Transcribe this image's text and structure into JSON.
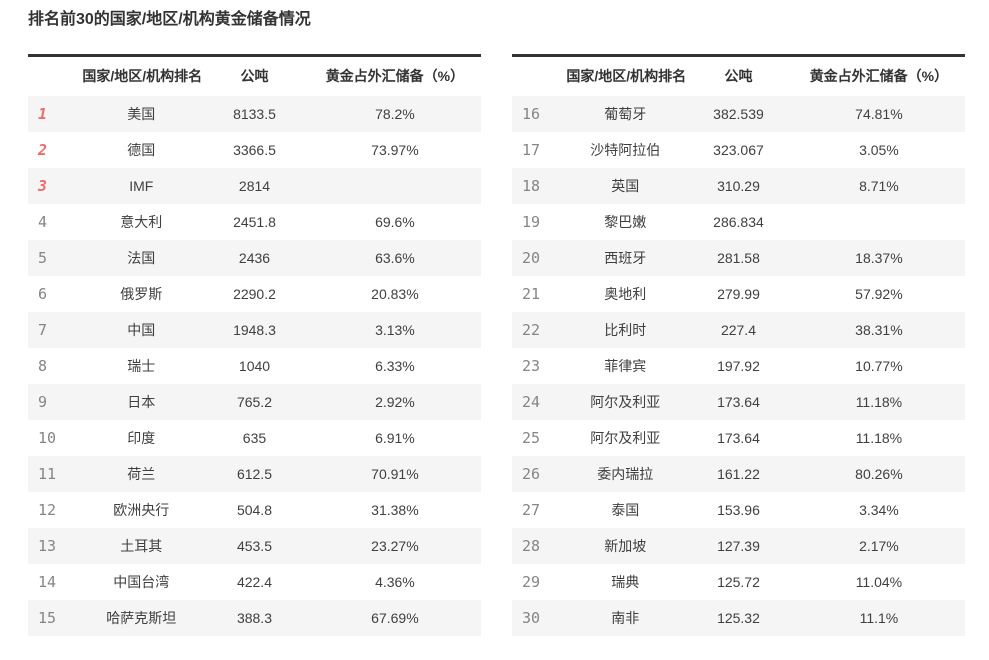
{
  "title": "排名前30的国家/地区/机构黄金储备情况",
  "colors": {
    "title_text": "#333333",
    "table_top_border": "#333333",
    "header_text": "#333333",
    "cell_text": "#404040",
    "rank_top3": "#f06a6c",
    "rank_default": "#858585",
    "row_stripe": "#f5f5f5",
    "background": "#ffffff"
  },
  "chart_data": [
    {
      "type": "table",
      "title": "排名前30的国家/地区/机构黄金储备情况（第1-15名）",
      "columns": [
        "国家/地区/机构排名",
        "公吨",
        "黄金占外汇储备（%）"
      ],
      "rows": [
        {
          "rank": "1",
          "name": "美国",
          "tons": "8133.5",
          "pct": "78.2%"
        },
        {
          "rank": "2",
          "name": "德国",
          "tons": "3366.5",
          "pct": "73.97%"
        },
        {
          "rank": "3",
          "name": "IMF",
          "tons": "2814",
          "pct": ""
        },
        {
          "rank": "4",
          "name": "意大利",
          "tons": "2451.8",
          "pct": "69.6%"
        },
        {
          "rank": "5",
          "name": "法国",
          "tons": "2436",
          "pct": "63.6%"
        },
        {
          "rank": "6",
          "name": "俄罗斯",
          "tons": "2290.2",
          "pct": "20.83%"
        },
        {
          "rank": "7",
          "name": "中国",
          "tons": "1948.3",
          "pct": "3.13%"
        },
        {
          "rank": "8",
          "name": "瑞士",
          "tons": "1040",
          "pct": "6.33%"
        },
        {
          "rank": "9",
          "name": "日本",
          "tons": "765.2",
          "pct": "2.92%"
        },
        {
          "rank": "10",
          "name": "印度",
          "tons": "635",
          "pct": "6.91%"
        },
        {
          "rank": "11",
          "name": "荷兰",
          "tons": "612.5",
          "pct": "70.91%"
        },
        {
          "rank": "12",
          "name": "欧洲央行",
          "tons": "504.8",
          "pct": "31.38%"
        },
        {
          "rank": "13",
          "name": "土耳其",
          "tons": "453.5",
          "pct": "23.27%"
        },
        {
          "rank": "14",
          "name": "中国台湾",
          "tons": "422.4",
          "pct": "4.36%"
        },
        {
          "rank": "15",
          "name": "哈萨克斯坦",
          "tons": "388.3",
          "pct": "67.69%"
        }
      ]
    },
    {
      "type": "table",
      "title": "排名前30的国家/地区/机构黄金储备情况（第16-30名）",
      "columns": [
        "国家/地区/机构排名",
        "公吨",
        "黄金占外汇储备（%）"
      ],
      "rows": [
        {
          "rank": "16",
          "name": "葡萄牙",
          "tons": "382.539",
          "pct": "74.81%"
        },
        {
          "rank": "17",
          "name": "沙特阿拉伯",
          "tons": "323.067",
          "pct": "3.05%"
        },
        {
          "rank": "18",
          "name": "英国",
          "tons": "310.29",
          "pct": "8.71%"
        },
        {
          "rank": "19",
          "name": "黎巴嫩",
          "tons": "286.834",
          "pct": ""
        },
        {
          "rank": "20",
          "name": "西班牙",
          "tons": "281.58",
          "pct": "18.37%"
        },
        {
          "rank": "21",
          "name": "奥地利",
          "tons": "279.99",
          "pct": "57.92%"
        },
        {
          "rank": "22",
          "name": "比利时",
          "tons": "227.4",
          "pct": "38.31%"
        },
        {
          "rank": "23",
          "name": "菲律宾",
          "tons": "197.92",
          "pct": "10.77%"
        },
        {
          "rank": "24",
          "name": "阿尔及利亚",
          "tons": "173.64",
          "pct": "11.18%"
        },
        {
          "rank": "25",
          "name": "阿尔及利亚",
          "tons": "173.64",
          "pct": "11.18%"
        },
        {
          "rank": "26",
          "name": "委内瑞拉",
          "tons": "161.22",
          "pct": "80.26%"
        },
        {
          "rank": "27",
          "name": "泰国",
          "tons": "153.96",
          "pct": "3.34%"
        },
        {
          "rank": "28",
          "name": "新加坡",
          "tons": "127.39",
          "pct": "2.17%"
        },
        {
          "rank": "29",
          "name": "瑞典",
          "tons": "125.72",
          "pct": "11.04%"
        },
        {
          "rank": "30",
          "name": "南非",
          "tons": "125.32",
          "pct": "11.1%"
        }
      ]
    }
  ]
}
